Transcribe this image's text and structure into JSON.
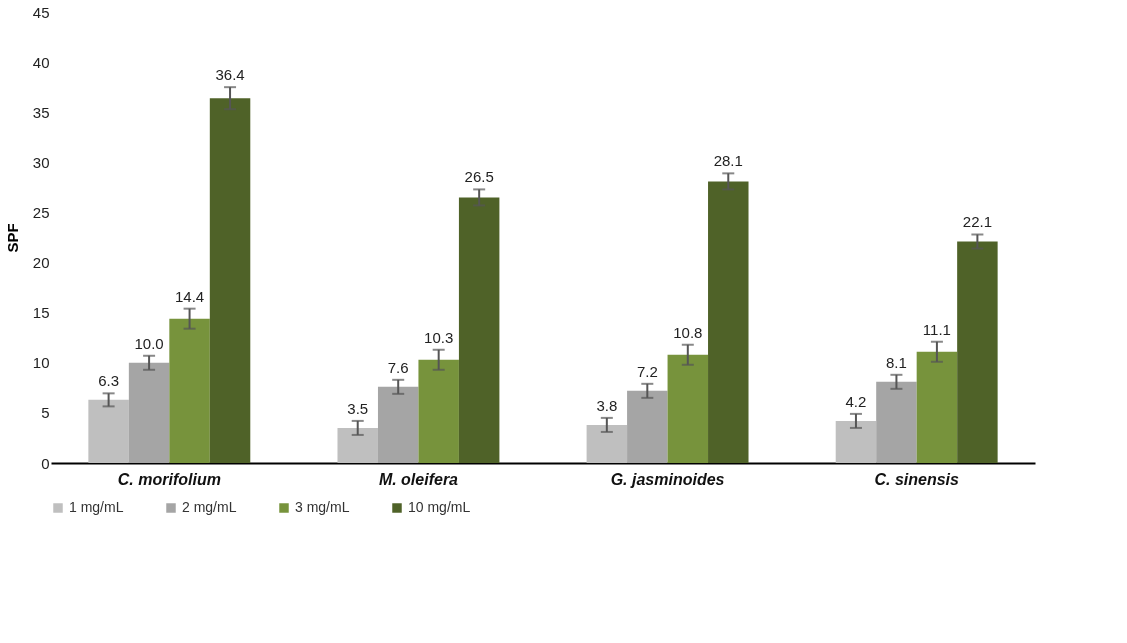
{
  "chart_data": {
    "type": "bar",
    "ylabel": "SPF",
    "categories": [
      "C. morifolium",
      "M. oleifera",
      "G. jasminoides",
      "C. sinensis"
    ],
    "series": [
      {
        "name": "1 mg/mL",
        "color": "#bfbfbf",
        "values": [
          6.3,
          3.5,
          3.8,
          4.2
        ],
        "errors": [
          0.65,
          0.7,
          0.7,
          0.7
        ],
        "value_labels": [
          "6.3",
          "3.5",
          "3.8",
          "4.2"
        ]
      },
      {
        "name": "2 mg/mL",
        "color": "#a5a5a5",
        "values": [
          10.0,
          7.6,
          7.2,
          8.1
        ],
        "errors": [
          0.7,
          0.7,
          0.7,
          0.7
        ],
        "value_labels": [
          "10.0",
          "7.6",
          "7.2",
          "8.1"
        ]
      },
      {
        "name": "3 mg/mL",
        "color": "#77933c",
        "values": [
          14.4,
          10.3,
          10.8,
          11.1
        ],
        "errors": [
          1.0,
          1.0,
          1.0,
          1.0
        ],
        "value_labels": [
          "14.4",
          "10.3",
          "10.8",
          "11.1"
        ]
      },
      {
        "name": "10 mg/mL",
        "color": "#4f6228",
        "values": [
          36.4,
          26.5,
          28.1,
          22.1
        ],
        "errors": [
          1.1,
          0.8,
          0.8,
          0.7
        ],
        "value_labels": [
          "36.4",
          "26.5",
          "28.1",
          "22.1"
        ]
      }
    ],
    "ylim": [
      0,
      45
    ],
    "yticks": [
      0,
      5,
      10,
      15,
      20,
      25,
      30,
      35,
      40,
      45
    ],
    "grid": false,
    "legend": "bottom"
  }
}
